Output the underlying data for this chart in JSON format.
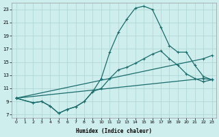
{
  "xlabel": "Humidex (Indice chaleur)",
  "background_color": "#ceeeed",
  "grid_color": "#aad4d3",
  "line_color": "#1a6b6b",
  "xlim": [
    -0.5,
    23.5
  ],
  "ylim": [
    6.5,
    24.0
  ],
  "xtick_labels": [
    "0",
    "1",
    "2",
    "3",
    "4",
    "5",
    "6",
    "7",
    "8",
    "9",
    "10",
    "11",
    "12",
    "13",
    "14",
    "15",
    "16",
    "17",
    "18",
    "19",
    "20",
    "21",
    "22",
    "23"
  ],
  "ytick_values": [
    7,
    9,
    11,
    13,
    15,
    17,
    19,
    21,
    23
  ],
  "line_main": {
    "x": [
      0,
      2,
      3,
      4,
      5,
      6,
      7,
      8,
      9,
      10,
      11,
      12,
      13,
      14,
      15,
      16,
      17,
      18,
      19,
      20,
      21,
      22,
      23
    ],
    "y": [
      9.5,
      8.8,
      9.0,
      8.3,
      7.2,
      7.8,
      8.2,
      9.0,
      10.5,
      12.5,
      16.5,
      19.5,
      21.5,
      23.2,
      23.5,
      23.0,
      20.3,
      17.5,
      16.5,
      16.5,
      14.5,
      12.8,
      12.3
    ]
  },
  "line_med_upper": {
    "x": [
      0,
      2,
      3,
      4,
      5,
      6,
      7,
      8,
      9,
      10,
      11,
      12,
      13,
      14,
      15,
      16,
      17,
      18,
      19,
      20,
      21,
      22,
      23
    ],
    "y": [
      9.5,
      8.8,
      9.0,
      8.3,
      7.2,
      7.8,
      8.2,
      9.0,
      10.5,
      11.0,
      12.5,
      13.8,
      14.2,
      14.8,
      15.5,
      16.2,
      16.7,
      15.5,
      14.5,
      13.2,
      12.5,
      12.0,
      12.3
    ]
  },
  "line_lower1": {
    "x": [
      0,
      22,
      23
    ],
    "y": [
      9.5,
      15.5,
      16.0
    ]
  },
  "line_lower2": {
    "x": [
      0,
      22,
      23
    ],
    "y": [
      9.5,
      12.5,
      12.3
    ]
  }
}
